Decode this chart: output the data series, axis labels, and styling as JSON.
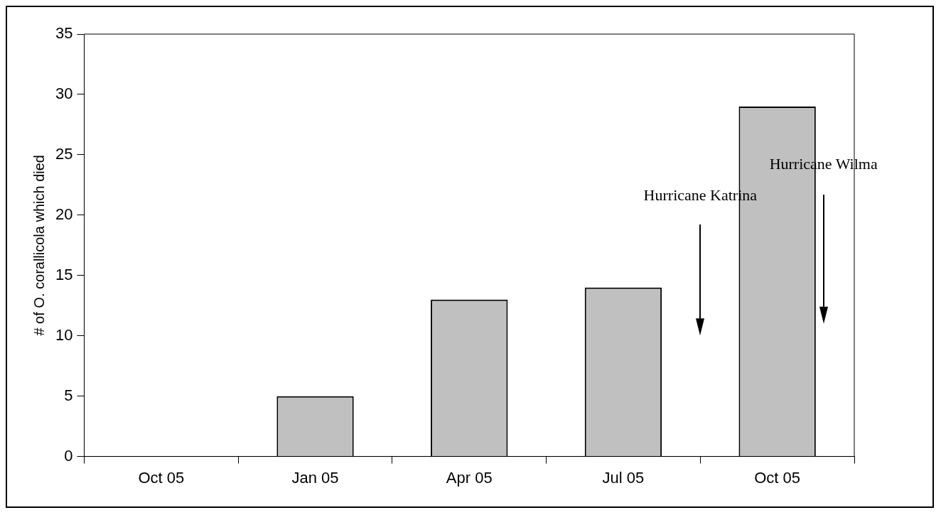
{
  "chart_data": {
    "type": "bar",
    "ylabel": "# of O. corallicola which died",
    "categories": [
      "Oct 05",
      "Jan 05",
      "Apr 05",
      "Jul 05",
      "Oct 05"
    ],
    "values": [
      0,
      5,
      13,
      14,
      29
    ],
    "color": "#c0c0c0",
    "ylim": [
      0,
      35
    ],
    "yticks": [
      0,
      5,
      10,
      15,
      20,
      25,
      30,
      35
    ],
    "grid": false,
    "legend": false,
    "annotations": [
      "Hurricane Katrina",
      "Hurricane Wilma"
    ]
  }
}
